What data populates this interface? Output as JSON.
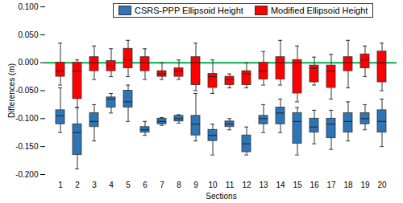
{
  "chart_data": {
    "type": "box",
    "x_label": "Sections",
    "y_label": "Differences (m)",
    "categories": [
      "1",
      "2",
      "3",
      "4",
      "5",
      "6",
      "7",
      "8",
      "9",
      "10",
      "11",
      "12",
      "13",
      "14",
      "15",
      "16",
      "17",
      "18",
      "19",
      "20"
    ],
    "ylim": [
      -0.2,
      0.1
    ],
    "yticks": [
      {
        "value": -0.2,
        "label": "-0.200"
      },
      {
        "value": -0.15,
        "label": "-0.150"
      },
      {
        "value": -0.1,
        "label": "-0.100"
      },
      {
        "value": -0.05,
        "label": "-0.050"
      },
      {
        "value": 0,
        "label": "0.000"
      },
      {
        "value": 0.05,
        "label": "0.050"
      },
      {
        "value": 0.1,
        "label": "0.100"
      }
    ],
    "reference_line": 0,
    "grid": false,
    "legend": "top",
    "series": [
      {
        "name": "CSRS-PPP Ellipsoid Height",
        "color": "#2e75b6",
        "min": [
          -0.125,
          -0.19,
          -0.14,
          -0.09,
          -0.105,
          -0.13,
          -0.112,
          -0.108,
          -0.14,
          -0.165,
          -0.12,
          -0.165,
          -0.125,
          -0.125,
          -0.165,
          -0.145,
          -0.155,
          -0.14,
          -0.12,
          -0.15
        ],
        "q1": [
          -0.11,
          -0.165,
          -0.115,
          -0.08,
          -0.08,
          -0.125,
          -0.11,
          -0.105,
          -0.13,
          -0.14,
          -0.115,
          -0.16,
          -0.11,
          -0.11,
          -0.145,
          -0.125,
          -0.135,
          -0.125,
          -0.11,
          -0.125
        ],
        "median": [
          -0.095,
          -0.125,
          -0.105,
          -0.065,
          -0.07,
          -0.12,
          -0.105,
          -0.1,
          -0.11,
          -0.13,
          -0.11,
          -0.145,
          -0.1,
          -0.09,
          -0.105,
          -0.115,
          -0.11,
          -0.105,
          -0.1,
          -0.105
        ],
        "q3": [
          -0.085,
          -0.11,
          -0.09,
          -0.062,
          -0.05,
          -0.115,
          -0.1,
          -0.095,
          -0.095,
          -0.12,
          -0.105,
          -0.13,
          -0.095,
          -0.08,
          -0.09,
          -0.1,
          -0.1,
          -0.09,
          -0.09,
          -0.085
        ],
        "max": [
          -0.045,
          -0.08,
          -0.075,
          -0.055,
          -0.04,
          -0.105,
          -0.098,
          -0.093,
          -0.055,
          -0.11,
          -0.1,
          -0.115,
          -0.075,
          -0.065,
          -0.08,
          -0.085,
          -0.085,
          -0.07,
          -0.075,
          -0.065
        ]
      },
      {
        "name": "Modified Ellipsoid Height",
        "color": "#ff0000",
        "min": [
          -0.04,
          -0.08,
          -0.03,
          -0.025,
          -0.025,
          -0.03,
          -0.03,
          -0.03,
          -0.05,
          -0.055,
          -0.045,
          -0.045,
          -0.04,
          -0.04,
          -0.07,
          -0.04,
          -0.065,
          -0.045,
          -0.025,
          -0.05
        ],
        "q1": [
          -0.025,
          -0.065,
          -0.015,
          -0.015,
          -0.01,
          -0.015,
          -0.025,
          -0.025,
          -0.04,
          -0.045,
          -0.04,
          -0.04,
          -0.03,
          -0.03,
          -0.055,
          -0.035,
          -0.045,
          -0.015,
          -0.01,
          -0.035
        ],
        "median": [
          -0.015,
          -0.015,
          0,
          -0.005,
          0.005,
          0,
          -0.02,
          -0.015,
          0,
          -0.025,
          -0.03,
          -0.02,
          -0.015,
          0,
          0,
          -0.01,
          -0.015,
          0,
          0.005,
          0
        ],
        "q3": [
          0,
          0,
          0.01,
          0.003,
          0.025,
          0.01,
          -0.015,
          -0.01,
          0.01,
          -0.02,
          -0.025,
          -0.015,
          0,
          0.01,
          0.005,
          -0.005,
          -0.005,
          0.01,
          0.015,
          0.02
        ],
        "max": [
          0.035,
          0.005,
          0.03,
          0.025,
          0.04,
          0.025,
          0,
          0.005,
          0.035,
          0.005,
          -0.02,
          0,
          0.02,
          0.04,
          0.03,
          0.01,
          0.015,
          0.04,
          0.03,
          0.035
        ]
      }
    ]
  }
}
